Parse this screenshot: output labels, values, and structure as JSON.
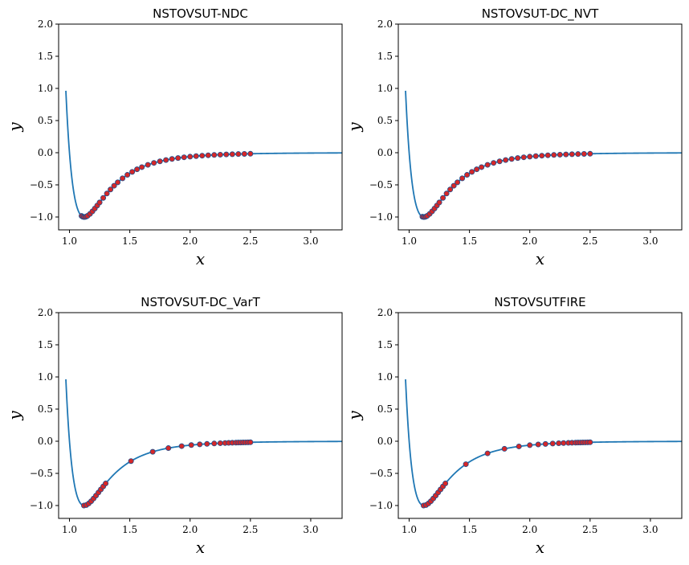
{
  "chart_data": [
    {
      "type": "scatter",
      "title": "NSTOVSUT-NDC",
      "xlabel": "x",
      "ylabel": "y",
      "xlim": [
        0.91,
        3.26
      ],
      "ylim": [
        -1.2,
        2.0
      ],
      "xticks": [
        "1.0",
        "1.5",
        "2.0",
        "2.5",
        "3.0"
      ],
      "yticks": [
        "2.0",
        "1.5",
        "1.0",
        "0.5",
        "0.0",
        "−0.5",
        "−1.0"
      ],
      "series": [
        {
          "kind": "line",
          "function": "lennard-jones",
          "x_range": [
            0.97,
            3.26
          ]
        },
        {
          "kind": "points",
          "x": [
            1.1,
            1.11,
            1.12,
            1.13,
            1.14,
            1.15,
            1.17,
            1.19,
            1.21,
            1.23,
            1.25,
            1.28,
            1.31,
            1.34,
            1.37,
            1.4,
            1.44,
            1.48,
            1.52,
            1.56,
            1.6,
            1.65,
            1.7,
            1.75,
            1.8,
            1.85,
            1.9,
            1.95,
            2.0,
            2.05,
            2.1,
            2.15,
            2.2,
            2.25,
            2.3,
            2.35,
            2.4,
            2.45,
            2.5
          ]
        }
      ],
      "grid": false
    },
    {
      "type": "scatter",
      "title": "NSTOVSUT-DC_NVT",
      "xlabel": "x",
      "ylabel": "y",
      "xlim": [
        0.91,
        3.26
      ],
      "ylim": [
        -1.2,
        2.0
      ],
      "xticks": [
        "1.0",
        "1.5",
        "2.0",
        "2.5",
        "3.0"
      ],
      "yticks": [
        "2.0",
        "1.5",
        "1.0",
        "0.5",
        "0.0",
        "−0.5",
        "−1.0"
      ],
      "series": [
        {
          "kind": "line",
          "function": "lennard-jones",
          "x_range": [
            0.97,
            3.26
          ]
        },
        {
          "kind": "points",
          "x": [
            1.11,
            1.12,
            1.13,
            1.14,
            1.15,
            1.17,
            1.19,
            1.21,
            1.23,
            1.25,
            1.28,
            1.31,
            1.34,
            1.37,
            1.4,
            1.44,
            1.48,
            1.52,
            1.56,
            1.6,
            1.65,
            1.7,
            1.75,
            1.8,
            1.85,
            1.9,
            1.95,
            2.0,
            2.05,
            2.1,
            2.15,
            2.2,
            2.25,
            2.3,
            2.35,
            2.4,
            2.45,
            2.5
          ]
        }
      ],
      "grid": false
    },
    {
      "type": "scatter",
      "title": "NSTOVSUT-DC_VarT",
      "xlabel": "x",
      "ylabel": "y",
      "xlim": [
        0.91,
        3.26
      ],
      "ylim": [
        -1.2,
        2.0
      ],
      "xticks": [
        "1.0",
        "1.5",
        "2.0",
        "2.5",
        "3.0"
      ],
      "yticks": [
        "2.0",
        "1.5",
        "1.0",
        "0.5",
        "0.0",
        "−0.5",
        "−1.0"
      ],
      "series": [
        {
          "kind": "line",
          "function": "lennard-jones",
          "x_range": [
            0.97,
            3.26
          ]
        },
        {
          "kind": "points",
          "x": [
            1.12,
            1.14,
            1.16,
            1.18,
            1.2,
            1.22,
            1.24,
            1.26,
            1.28,
            1.3,
            1.51,
            1.69,
            1.82,
            1.93,
            2.01,
            2.08,
            2.14,
            2.2,
            2.25,
            2.29,
            2.32,
            2.35,
            2.38,
            2.4,
            2.42,
            2.44,
            2.46,
            2.48,
            2.5
          ]
        }
      ],
      "grid": false
    },
    {
      "type": "scatter",
      "title": "NSTOVSUTFIRE",
      "xlabel": "x",
      "ylabel": "y",
      "xlim": [
        0.91,
        3.26
      ],
      "ylim": [
        -1.2,
        2.0
      ],
      "xticks": [
        "1.0",
        "1.5",
        "2.0",
        "2.5",
        "3.0"
      ],
      "yticks": [
        "2.0",
        "1.5",
        "1.0",
        "0.5",
        "0.0",
        "−0.5",
        "−1.0"
      ],
      "series": [
        {
          "kind": "line",
          "function": "lennard-jones",
          "x_range": [
            0.97,
            3.26
          ]
        },
        {
          "kind": "points",
          "x": [
            1.12,
            1.14,
            1.16,
            1.18,
            1.2,
            1.22,
            1.24,
            1.26,
            1.28,
            1.3,
            1.47,
            1.65,
            1.79,
            1.91,
            2.0,
            2.07,
            2.13,
            2.19,
            2.24,
            2.28,
            2.32,
            2.35,
            2.38,
            2.4,
            2.42,
            2.44,
            2.46,
            2.48,
            2.5
          ]
        }
      ],
      "grid": false
    }
  ],
  "colors": {
    "curve": "#1f77b4",
    "points_fill": "#d62728",
    "points_edge": "#1f4e8c"
  }
}
